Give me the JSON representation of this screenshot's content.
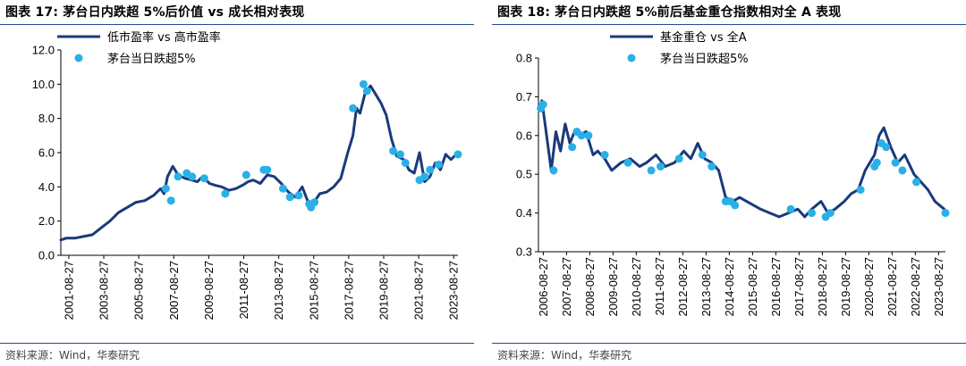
{
  "chart_data": [
    {
      "type": "line",
      "title": "图表 17:   茅台日内跌超 5%后价值 vs 成长相对表现",
      "source": "资料来源：Wind，华泰研究",
      "legend": {
        "placement": "top-left",
        "line_label": "低市盈率 vs 高市盈率",
        "dot_label": "茅台当日跌超5%"
      },
      "ylim": [
        0,
        12
      ],
      "yticks": [
        "0.0",
        "2.0",
        "4.0",
        "6.0",
        "8.0",
        "10.0",
        "12.0"
      ],
      "xticks": [
        "2001-08-27",
        "2003-08-27",
        "2005-08-27",
        "2007-08-27",
        "2009-08-27",
        "2011-08-27",
        "2013-08-27",
        "2015-08-27",
        "2017-08-27",
        "2019-08-27",
        "2021-08-27",
        "2023-08-27"
      ],
      "xlim": [
        2001.2,
        2023.9
      ],
      "series": [
        {
          "x": [
            2001.2,
            2001.5,
            2002.0,
            2002.5,
            2003.0,
            2003.5,
            2004.0,
            2004.5,
            2005.0,
            2005.5,
            2006.0,
            2006.5,
            2006.9,
            2007.1,
            2007.3,
            2007.6,
            2007.9,
            2008.3,
            2008.7,
            2009.0,
            2009.3,
            2009.7,
            2010.0,
            2010.4,
            2010.8,
            2011.2,
            2011.6,
            2011.9,
            2012.2,
            2012.6,
            2013.0,
            2013.4,
            2013.8,
            2014.2,
            2014.6,
            2015.0,
            2015.3,
            2015.6,
            2016.0,
            2016.4,
            2016.8,
            2017.2,
            2017.6,
            2017.9,
            2018.1,
            2018.3,
            2018.6,
            2018.9,
            2019.2,
            2019.5,
            2019.8,
            2020.1,
            2020.4,
            2020.8,
            2021.1,
            2021.4,
            2021.7,
            2022.0,
            2022.3,
            2022.6,
            2022.9,
            2023.2,
            2023.5,
            2023.9
          ],
          "y": [
            0.9,
            1.0,
            1.0,
            1.1,
            1.2,
            1.6,
            2.0,
            2.5,
            2.8,
            3.1,
            3.2,
            3.5,
            3.9,
            3.6,
            4.6,
            5.2,
            4.7,
            4.5,
            4.4,
            4.3,
            4.6,
            4.2,
            4.1,
            4.0,
            3.8,
            3.9,
            4.1,
            4.3,
            4.4,
            4.2,
            4.7,
            4.6,
            4.2,
            3.7,
            3.4,
            4.0,
            3.2,
            3.0,
            3.6,
            3.7,
            4.0,
            4.5,
            6.0,
            7.0,
            8.6,
            8.3,
            9.5,
            9.9,
            9.4,
            8.9,
            8.2,
            6.8,
            5.8,
            5.6,
            5.0,
            4.8,
            6.0,
            4.3,
            4.6,
            5.4,
            5.0,
            5.9,
            5.6,
            6.0
          ]
        }
      ],
      "events": {
        "x": [
          2007.2,
          2007.5,
          2007.9,
          2008.4,
          2008.7,
          2009.4,
          2010.6,
          2011.8,
          2012.8,
          2013.0,
          2013.9,
          2014.3,
          2014.8,
          2015.4,
          2015.5,
          2015.7,
          2017.9,
          2018.5,
          2018.7,
          2020.2,
          2020.6,
          2020.9,
          2021.7,
          2022.0,
          2022.3,
          2022.8,
          2023.9
        ],
        "y": [
          3.9,
          3.2,
          4.6,
          4.8,
          4.6,
          4.5,
          3.6,
          4.7,
          5.0,
          5.0,
          3.9,
          3.4,
          3.5,
          3.0,
          2.8,
          3.1,
          8.6,
          10.0,
          9.6,
          6.1,
          5.9,
          5.4,
          4.4,
          4.6,
          5.0,
          5.3,
          5.9
        ]
      }
    },
    {
      "type": "line",
      "title": "图表 18:   茅台日内跌超 5%前后基金重仓指数相对全 A 表现",
      "source": "资料来源：Wind，华泰研究",
      "legend": {
        "placement": "top-left",
        "line_label": "基金重仓 vs 全A",
        "dot_label": "茅台当日跌超5%"
      },
      "ylim": [
        0.3,
        0.8
      ],
      "yticks": [
        "0.3",
        "0.4",
        "0.5",
        "0.6",
        "0.7",
        "0.8"
      ],
      "xticks": [
        "2006-08-27",
        "2007-08-27",
        "2008-08-27",
        "2009-08-27",
        "2010-08-27",
        "2011-08-27",
        "2012-08-27",
        "2013-08-27",
        "2014-08-27",
        "2015-08-27",
        "2016-08-27",
        "2017-08-27",
        "2018-08-27",
        "2019-08-27",
        "2020-08-27",
        "2021-08-27",
        "2022-08-27",
        "2023-08-27"
      ],
      "xlim": [
        2006.45,
        2023.95
      ],
      "series": [
        {
          "x": [
            2006.5,
            2006.6,
            2006.8,
            2007.0,
            2007.2,
            2007.4,
            2007.6,
            2007.8,
            2008.0,
            2008.2,
            2008.5,
            2008.8,
            2009.0,
            2009.3,
            2009.6,
            2010.0,
            2010.4,
            2010.8,
            2011.1,
            2011.5,
            2011.9,
            2012.3,
            2012.7,
            2013.0,
            2013.3,
            2013.6,
            2013.9,
            2014.2,
            2014.5,
            2014.8,
            2015.1,
            2015.4,
            2015.7,
            2016.0,
            2016.4,
            2016.8,
            2017.2,
            2017.6,
            2017.9,
            2018.2,
            2018.6,
            2018.9,
            2019.2,
            2019.6,
            2019.9,
            2020.2,
            2020.5,
            2020.7,
            2020.9,
            2021.1,
            2021.3,
            2021.6,
            2021.9,
            2022.2,
            2022.6,
            2022.9,
            2023.2,
            2023.5,
            2023.9
          ],
          "y": [
            0.67,
            0.69,
            0.6,
            0.51,
            0.61,
            0.56,
            0.63,
            0.58,
            0.61,
            0.6,
            0.61,
            0.55,
            0.56,
            0.54,
            0.51,
            0.53,
            0.54,
            0.52,
            0.53,
            0.55,
            0.52,
            0.53,
            0.56,
            0.54,
            0.58,
            0.54,
            0.53,
            0.51,
            0.44,
            0.43,
            0.44,
            0.43,
            0.42,
            0.41,
            0.4,
            0.39,
            0.4,
            0.41,
            0.39,
            0.41,
            0.43,
            0.4,
            0.41,
            0.43,
            0.45,
            0.46,
            0.51,
            0.53,
            0.55,
            0.6,
            0.62,
            0.57,
            0.53,
            0.55,
            0.5,
            0.48,
            0.46,
            0.43,
            0.41
          ]
        }
      ],
      "events": {
        "x": [
          2006.55,
          2006.65,
          2007.1,
          2007.9,
          2008.1,
          2008.3,
          2008.6,
          2009.3,
          2010.3,
          2011.3,
          2011.7,
          2012.5,
          2013.5,
          2013.9,
          2014.5,
          2014.7,
          2014.9,
          2017.3,
          2018.2,
          2018.8,
          2019.0,
          2020.3,
          2020.9,
          2021.0,
          2021.2,
          2021.4,
          2021.8,
          2022.1,
          2022.7,
          2023.95
        ],
        "y": [
          0.67,
          0.68,
          0.51,
          0.57,
          0.61,
          0.6,
          0.6,
          0.55,
          0.53,
          0.51,
          0.52,
          0.54,
          0.55,
          0.52,
          0.43,
          0.43,
          0.42,
          0.41,
          0.4,
          0.39,
          0.4,
          0.46,
          0.52,
          0.53,
          0.58,
          0.57,
          0.53,
          0.51,
          0.48,
          0.4
        ]
      }
    }
  ],
  "colors": {
    "line": "#1a3a7a",
    "dot": "#2ab0e8",
    "rule": "#1f4e8c",
    "axis": "#000000"
  }
}
